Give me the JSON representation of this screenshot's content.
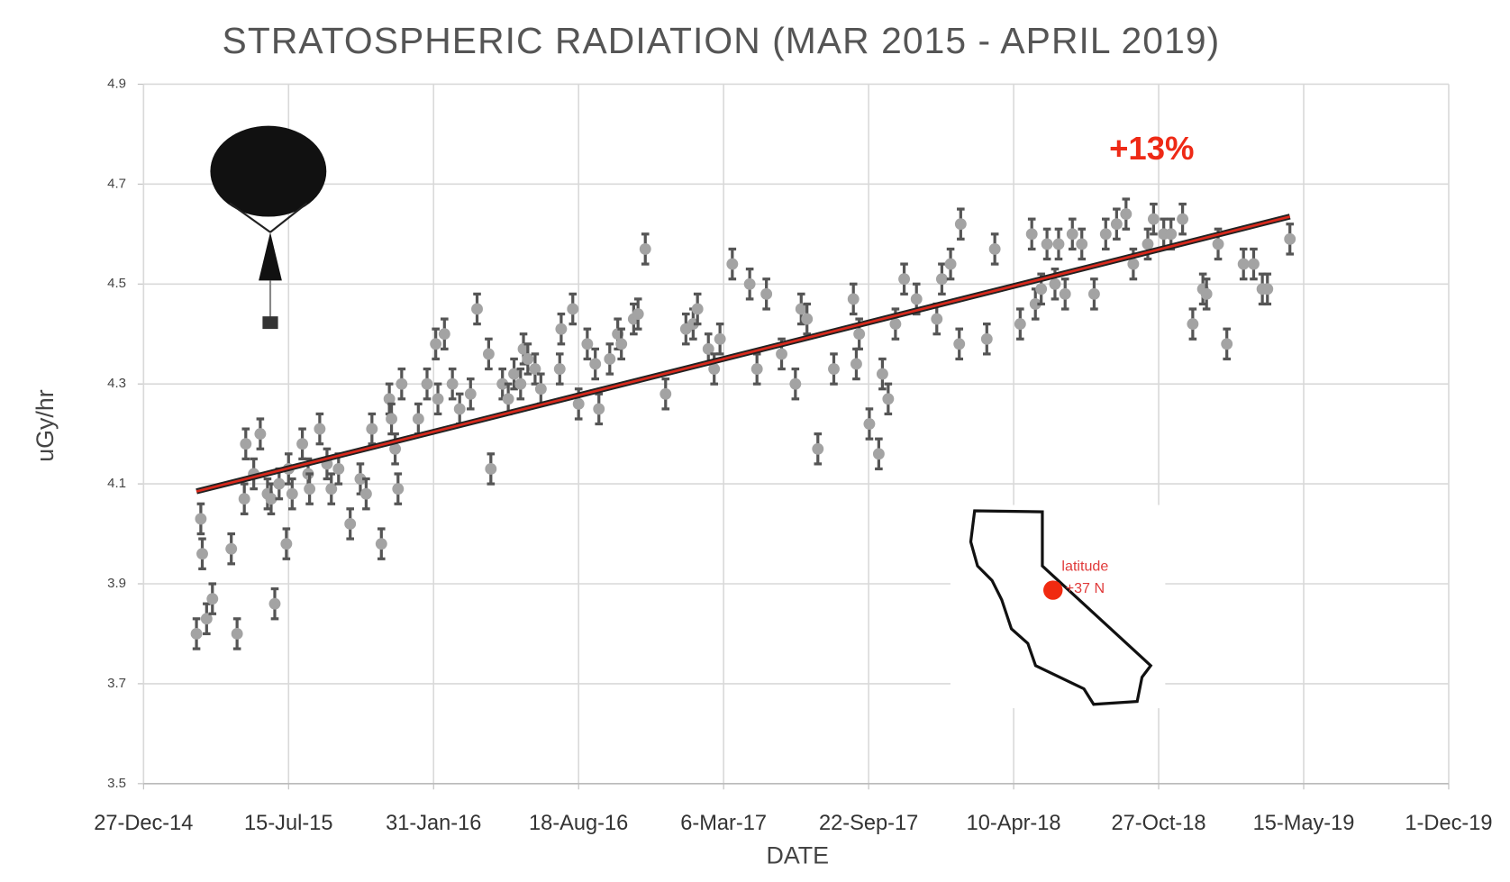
{
  "chart_data": {
    "type": "scatter",
    "title": "STRATOSPHERIC RADIATION (MAR 2015 - APRIL 2019)",
    "x_label": "DATE",
    "y_label": "uGy/hr",
    "xlim": [
      "2014-12-27",
      "2019-12-01"
    ],
    "xticks": [
      {
        "value": "2014-12-27",
        "label": "27-Dec-14"
      },
      {
        "value": "2015-07-15",
        "label": "15-Jul-15"
      },
      {
        "value": "2016-01-31",
        "label": "31-Jan-16"
      },
      {
        "value": "2016-08-18",
        "label": "18-Aug-16"
      },
      {
        "value": "2017-03-06",
        "label": "6-Mar-17"
      },
      {
        "value": "2017-09-22",
        "label": "22-Sep-17"
      },
      {
        "value": "2018-04-10",
        "label": "10-Apr-18"
      },
      {
        "value": "2018-10-27",
        "label": "27-Oct-18"
      },
      {
        "value": "2019-05-15",
        "label": "15-May-19"
      },
      {
        "value": "2019-12-01",
        "label": "1-Dec-19"
      }
    ],
    "ylim": [
      3.5,
      4.9
    ],
    "yticks": [
      3.5,
      3.7,
      3.9,
      4.1,
      4.3,
      4.5,
      4.7,
      4.9
    ],
    "grid": true,
    "series": [
      {
        "color": "#a3a3a3",
        "error_color": "#555555",
        "error": 0.03,
        "x": [
          "2015-03-10",
          "2015-03-16",
          "2015-03-18",
          "2015-03-24",
          "2015-04-01",
          "2015-04-27",
          "2015-05-05",
          "2015-05-15",
          "2015-05-17",
          "2015-05-28",
          "2015-06-06",
          "2015-06-16",
          "2015-06-21",
          "2015-06-26",
          "2015-07-02",
          "2015-07-12",
          "2015-07-15",
          "2015-07-20",
          "2015-08-03",
          "2015-08-11",
          "2015-08-13",
          "2015-08-27",
          "2015-09-06",
          "2015-09-12",
          "2015-09-22",
          "2015-10-08",
          "2015-10-22",
          "2015-10-30",
          "2015-11-07",
          "2015-11-20",
          "2015-12-01",
          "2015-12-04",
          "2015-12-09",
          "2015-12-13",
          "2015-12-18",
          "2016-01-10",
          "2016-01-22",
          "2016-02-03",
          "2016-02-06",
          "2016-02-15",
          "2016-02-26",
          "2016-03-07",
          "2016-03-22",
          "2016-03-31",
          "2016-04-16",
          "2016-04-19",
          "2016-05-05",
          "2016-05-13",
          "2016-05-21",
          "2016-05-30",
          "2016-06-03",
          "2016-06-09",
          "2016-06-19",
          "2016-06-27",
          "2016-07-23",
          "2016-07-25",
          "2016-08-10",
          "2016-08-18",
          "2016-08-30",
          "2016-09-10",
          "2016-09-15",
          "2016-09-30",
          "2016-10-11",
          "2016-10-16",
          "2016-11-02",
          "2016-11-08",
          "2016-11-18",
          "2016-12-16",
          "2017-01-13",
          "2017-01-23",
          "2017-01-29",
          "2017-02-13",
          "2017-02-21",
          "2017-03-01",
          "2017-03-18",
          "2017-04-11",
          "2017-04-21",
          "2017-05-04",
          "2017-05-25",
          "2017-06-13",
          "2017-06-21",
          "2017-06-29",
          "2017-07-14",
          "2017-08-05",
          "2017-09-01",
          "2017-09-05",
          "2017-09-09",
          "2017-09-23",
          "2017-10-06",
          "2017-10-11",
          "2017-10-19",
          "2017-10-29",
          "2017-11-10",
          "2017-11-27",
          "2017-12-25",
          "2018-01-01",
          "2018-01-13",
          "2018-01-25",
          "2018-01-27",
          "2018-03-04",
          "2018-03-15",
          "2018-04-19",
          "2018-05-05",
          "2018-05-10",
          "2018-05-18",
          "2018-05-26",
          "2018-06-06",
          "2018-06-11",
          "2018-06-20",
          "2018-06-30",
          "2018-07-13",
          "2018-07-30",
          "2018-08-15",
          "2018-08-30",
          "2018-09-12",
          "2018-09-22",
          "2018-10-12",
          "2018-10-20",
          "2018-11-03",
          "2018-11-13",
          "2018-11-29",
          "2018-12-13",
          "2018-12-27",
          "2019-01-01",
          "2019-01-17",
          "2019-01-29",
          "2019-02-21",
          "2019-03-07",
          "2019-03-19",
          "2019-03-26",
          "2019-04-26"
        ],
        "values": [
          3.8,
          4.03,
          3.96,
          3.83,
          3.87,
          3.97,
          3.8,
          4.07,
          4.18,
          4.12,
          4.2,
          4.08,
          4.07,
          3.86,
          4.1,
          3.98,
          4.13,
          4.08,
          4.18,
          4.12,
          4.09,
          4.21,
          4.14,
          4.09,
          4.13,
          4.02,
          4.11,
          4.08,
          4.21,
          3.98,
          4.27,
          4.23,
          4.17,
          4.09,
          4.3,
          4.23,
          4.3,
          4.38,
          4.27,
          4.4,
          4.3,
          4.25,
          4.28,
          4.45,
          4.36,
          4.13,
          4.3,
          4.27,
          4.32,
          4.3,
          4.37,
          4.35,
          4.33,
          4.29,
          4.33,
          4.41,
          4.45,
          4.26,
          4.38,
          4.34,
          4.25,
          4.35,
          4.4,
          4.38,
          4.43,
          4.44,
          4.57,
          4.28,
          4.41,
          4.42,
          4.45,
          4.37,
          4.33,
          4.39,
          4.54,
          4.5,
          4.33,
          4.48,
          4.36,
          4.3,
          4.45,
          4.43,
          4.17,
          4.33,
          4.47,
          4.34,
          4.4,
          4.22,
          4.16,
          4.32,
          4.27,
          4.42,
          4.51,
          4.47,
          4.43,
          4.51,
          4.54,
          4.38,
          4.62,
          4.39,
          4.57,
          4.42,
          4.6,
          4.46,
          4.49,
          4.58,
          4.5,
          4.58,
          4.48,
          4.6,
          4.58,
          4.48,
          4.6,
          4.62,
          4.64,
          4.54,
          4.58,
          4.63,
          4.6,
          4.6,
          4.63,
          4.42,
          4.49,
          4.48,
          4.58,
          4.38,
          4.54,
          4.54,
          4.49,
          4.49,
          4.59
        ]
      }
    ],
    "trend": {
      "color": "#d9291c",
      "x": [
        "2015-03-10",
        "2019-04-26"
      ],
      "values": [
        4.085,
        4.635
      ]
    },
    "annotations": [
      {
        "text": "+13%",
        "color": "#ee2a16"
      },
      {
        "text": "latitude",
        "color": "#e03a3a"
      },
      {
        "text": "+37 N",
        "color": "#e03a3a"
      }
    ]
  }
}
